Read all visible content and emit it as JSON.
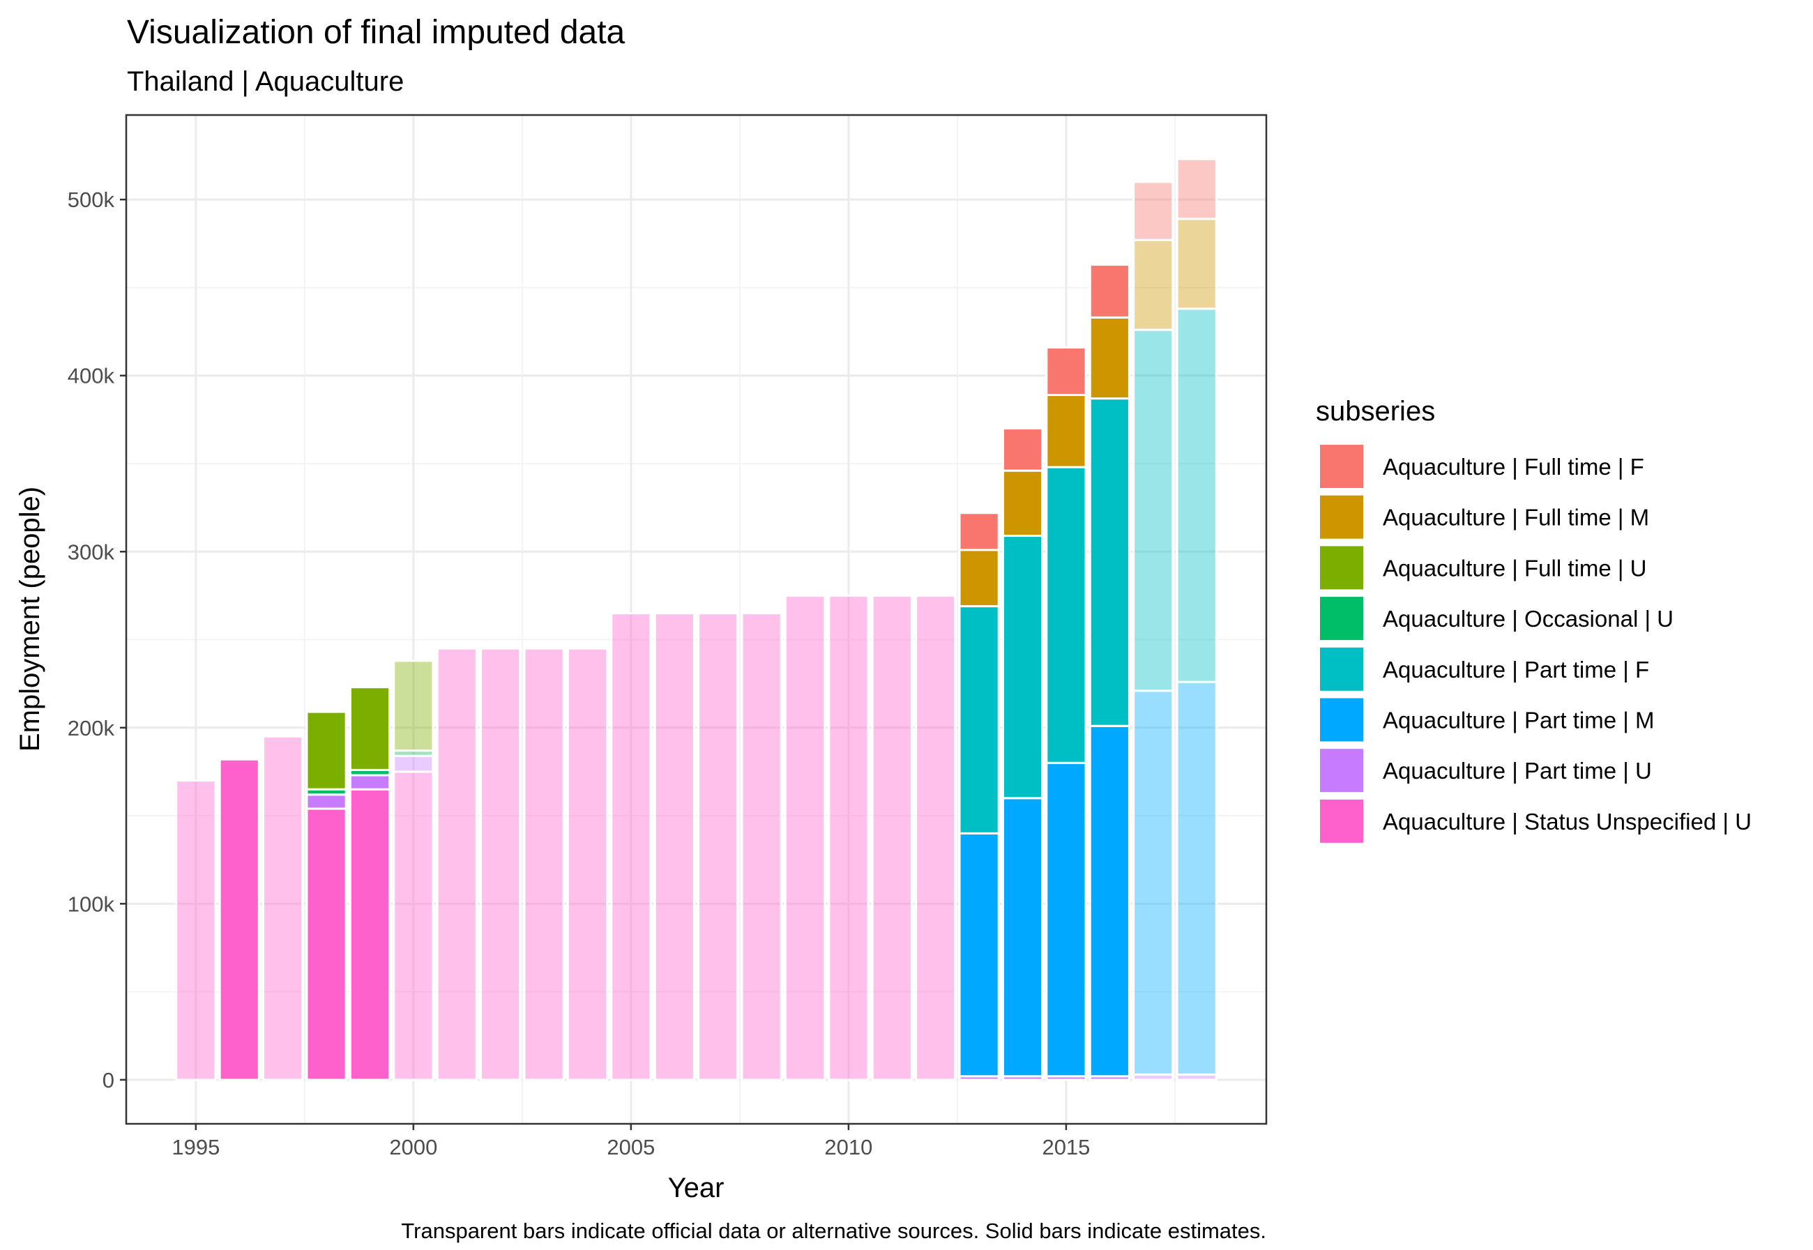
{
  "chart_data": {
    "type": "bar",
    "stacked": true,
    "title": "Visualization of final imputed data",
    "subtitle": "Thailand | Aquaculture",
    "xlabel": "Year",
    "ylabel": "Employment (people)",
    "caption": "Transparent bars indicate official data or alternative sources. Solid bars indicate estimates.",
    "xlim": [
      1993.4,
      2019.6
    ],
    "ylim": [
      -25000,
      548000
    ],
    "x_ticks": [
      1995,
      2000,
      2005,
      2010,
      2015
    ],
    "y_ticks": [
      0,
      100000,
      200000,
      300000,
      400000,
      500000
    ],
    "y_tick_labels": [
      "0",
      "100k",
      "200k",
      "300k",
      "400k",
      "500k"
    ],
    "grid": true,
    "legend": {
      "title": "subseries",
      "position": "right"
    },
    "series": [
      {
        "name": "Aquaculture | Full time | F",
        "color": "#F8766D"
      },
      {
        "name": "Aquaculture | Full time | M",
        "color": "#CD9600"
      },
      {
        "name": "Aquaculture | Full time | U",
        "color": "#7CAE00"
      },
      {
        "name": "Aquaculture | Occasional | U",
        "color": "#00BE67"
      },
      {
        "name": "Aquaculture | Part time | F",
        "color": "#00BFC4"
      },
      {
        "name": "Aquaculture | Part time | M",
        "color": "#00A9FF"
      },
      {
        "name": "Aquaculture | Part time | U",
        "color": "#C77CFF"
      },
      {
        "name": "Aquaculture | Status Unspecified | U",
        "color": "#FF61CC"
      }
    ],
    "bars": [
      {
        "year": 1995,
        "transparent": true,
        "segments": {
          "Aquaculture | Status Unspecified | U": 170000
        }
      },
      {
        "year": 1996,
        "transparent": false,
        "segments": {
          "Aquaculture | Status Unspecified | U": 182000
        }
      },
      {
        "year": 1997,
        "transparent": true,
        "segments": {
          "Aquaculture | Status Unspecified | U": 195000
        }
      },
      {
        "year": 1998,
        "transparent": false,
        "segments": {
          "Aquaculture | Status Unspecified | U": 154000,
          "Aquaculture | Part time | U": 8000,
          "Aquaculture | Occasional | U": 3000,
          "Aquaculture | Full time | U": 44000
        }
      },
      {
        "year": 1999,
        "transparent": false,
        "segments": {
          "Aquaculture | Status Unspecified | U": 165000,
          "Aquaculture | Part time | U": 8000,
          "Aquaculture | Occasional | U": 3000,
          "Aquaculture | Full time | U": 47000
        }
      },
      {
        "year": 2000,
        "transparent": true,
        "segments": {
          "Aquaculture | Status Unspecified | U": 175000,
          "Aquaculture | Part time | U": 9000,
          "Aquaculture | Occasional | U": 3000,
          "Aquaculture | Full time | U": 51000
        }
      },
      {
        "year": 2001,
        "transparent": true,
        "segments": {
          "Aquaculture | Status Unspecified | U": 245000
        }
      },
      {
        "year": 2002,
        "transparent": true,
        "segments": {
          "Aquaculture | Status Unspecified | U": 245000
        }
      },
      {
        "year": 2003,
        "transparent": true,
        "segments": {
          "Aquaculture | Status Unspecified | U": 245000
        }
      },
      {
        "year": 2004,
        "transparent": true,
        "segments": {
          "Aquaculture | Status Unspecified | U": 245000
        }
      },
      {
        "year": 2005,
        "transparent": true,
        "segments": {
          "Aquaculture | Status Unspecified | U": 265000
        }
      },
      {
        "year": 2006,
        "transparent": true,
        "segments": {
          "Aquaculture | Status Unspecified | U": 265000
        }
      },
      {
        "year": 2007,
        "transparent": true,
        "segments": {
          "Aquaculture | Status Unspecified | U": 265000
        }
      },
      {
        "year": 2008,
        "transparent": true,
        "segments": {
          "Aquaculture | Status Unspecified | U": 265000
        }
      },
      {
        "year": 2009,
        "transparent": true,
        "segments": {
          "Aquaculture | Status Unspecified | U": 275000
        }
      },
      {
        "year": 2010,
        "transparent": true,
        "segments": {
          "Aquaculture | Status Unspecified | U": 275000
        }
      },
      {
        "year": 2011,
        "transparent": true,
        "segments": {
          "Aquaculture | Status Unspecified | U": 275000
        }
      },
      {
        "year": 2012,
        "transparent": true,
        "segments": {
          "Aquaculture | Status Unspecified | U": 275000
        }
      },
      {
        "year": 2013,
        "transparent": false,
        "segments": {
          "Aquaculture | Part time | U": 2000,
          "Aquaculture | Part time | M": 138000,
          "Aquaculture | Part time | F": 129000,
          "Aquaculture | Full time | M": 32000,
          "Aquaculture | Full time | F": 21000
        }
      },
      {
        "year": 2014,
        "transparent": false,
        "segments": {
          "Aquaculture | Part time | U": 2000,
          "Aquaculture | Part time | M": 158000,
          "Aquaculture | Part time | F": 149000,
          "Aquaculture | Full time | M": 37000,
          "Aquaculture | Full time | F": 24000
        }
      },
      {
        "year": 2015,
        "transparent": false,
        "segments": {
          "Aquaculture | Part time | U": 2000,
          "Aquaculture | Part time | M": 178000,
          "Aquaculture | Part time | F": 168000,
          "Aquaculture | Full time | M": 41000,
          "Aquaculture | Full time | F": 27000
        }
      },
      {
        "year": 2016,
        "transparent": false,
        "segments": {
          "Aquaculture | Part time | U": 2000,
          "Aquaculture | Part time | M": 199000,
          "Aquaculture | Part time | F": 186000,
          "Aquaculture | Full time | M": 46000,
          "Aquaculture | Full time | F": 30000
        }
      },
      {
        "year": 2017,
        "transparent": true,
        "segments": {
          "Aquaculture | Part time | U": 3000,
          "Aquaculture | Part time | M": 218000,
          "Aquaculture | Part time | F": 205000,
          "Aquaculture | Full time | M": 51000,
          "Aquaculture | Full time | F": 33000
        }
      },
      {
        "year": 2018,
        "transparent": true,
        "segments": {
          "Aquaculture | Part time | U": 3000,
          "Aquaculture | Part time | M": 223000,
          "Aquaculture | Part time | F": 212000,
          "Aquaculture | Full time | M": 51000,
          "Aquaculture | Full time | F": 34000
        }
      }
    ]
  }
}
